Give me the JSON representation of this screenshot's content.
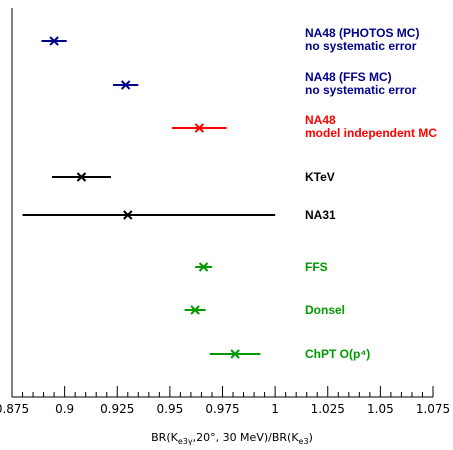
{
  "chart_data": {
    "type": "scatter",
    "xlabel": "BR(K_{e3γ},20°, 30 MeV)/BR(K_{e3})",
    "xlabel_parts": {
      "br1": "BR(K",
      "sub1": "e3γ",
      "mid": ",20°, 30 MeV)/BR(K",
      "sub2": "e3",
      "end": ")"
    },
    "xlim": [
      0.875,
      1.075
    ],
    "xticks": [
      "0.875",
      "0.9",
      "0.925",
      "0.95",
      "0.975",
      "1",
      "1.025",
      "1.05",
      "1.075"
    ],
    "grid": false,
    "legend": "none",
    "entries": [
      {
        "lines": [
          "NA48 (PHOTOS MC)",
          "no systematic error"
        ],
        "value": 0.895,
        "err_low": 0.889,
        "err_high": 0.901,
        "color": "#00008b"
      },
      {
        "lines": [
          "NA48 (FFS MC)",
          "no systematic error"
        ],
        "value": 0.929,
        "err_low": 0.923,
        "err_high": 0.935,
        "color": "#00008b"
      },
      {
        "lines": [
          "NA48",
          "model independent MC"
        ],
        "value": 0.964,
        "err_low": 0.951,
        "err_high": 0.977,
        "color": "#ff0000"
      },
      {
        "lines": [
          "KTeV"
        ],
        "value": 0.908,
        "err_low": 0.894,
        "err_high": 0.922,
        "color": "#000000"
      },
      {
        "lines": [
          "NA31"
        ],
        "value": 0.93,
        "err_low": 0.88,
        "err_high": 1.0,
        "color": "#000000"
      },
      {
        "lines": [
          "FFS"
        ],
        "value": 0.966,
        "err_low": 0.962,
        "err_high": 0.97,
        "color": "#009900"
      },
      {
        "lines": [
          "Donsel"
        ],
        "value": 0.962,
        "err_low": 0.957,
        "err_high": 0.967,
        "color": "#009900"
      },
      {
        "lines": [
          "ChPT  O(p⁴)"
        ],
        "value": 0.981,
        "err_low": 0.969,
        "err_high": 0.993,
        "color": "#009900"
      }
    ]
  }
}
